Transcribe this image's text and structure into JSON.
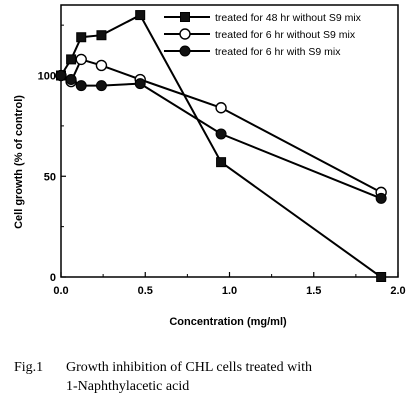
{
  "chart_data": {
    "type": "line",
    "xlabel": "Concentration (mg/ml)",
    "ylabel": "Cell growth (% of control)",
    "xlim": [
      0,
      2.0
    ],
    "ylim": [
      0,
      135
    ],
    "x_ticks": [
      "0.0",
      "0.5",
      "1.0",
      "1.5",
      "2.0"
    ],
    "x_tick_values": [
      0,
      0.5,
      1.0,
      1.5,
      2.0
    ],
    "y_ticks": [
      "0",
      "50",
      "100"
    ],
    "y_tick_values": [
      0,
      50,
      100
    ],
    "grid": false,
    "legend_position": "top-right",
    "series": [
      {
        "name": "treated for 48 hr without S9 mix",
        "marker": "filled-square",
        "x": [
          0,
          0.06,
          0.12,
          0.24,
          0.47,
          0.95,
          1.9
        ],
        "y": [
          100,
          108,
          119,
          120,
          130,
          57,
          0
        ]
      },
      {
        "name": "treated for 6 hr without S9 mix",
        "marker": "open-circle",
        "x": [
          0,
          0.06,
          0.12,
          0.24,
          0.47,
          0.95,
          1.9
        ],
        "y": [
          100,
          97,
          108,
          105,
          98,
          84,
          42
        ]
      },
      {
        "name": "treated for 6 hr with S9 mix",
        "marker": "filled-circle",
        "x": [
          0,
          0.06,
          0.12,
          0.24,
          0.47,
          0.95,
          1.9
        ],
        "y": [
          100,
          98,
          95,
          95,
          96,
          71,
          39
        ]
      }
    ]
  },
  "caption": {
    "number": "Fig.1",
    "line1": "Growth inhibition of CHL cells treated with",
    "line2": "1-Naphthylacetic acid"
  }
}
